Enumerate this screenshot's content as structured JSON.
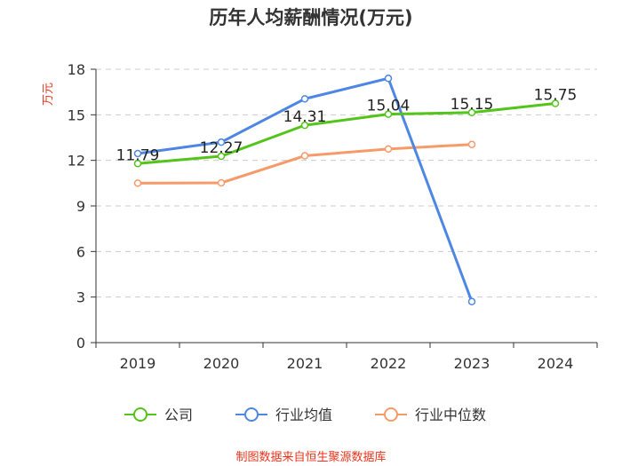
{
  "title": "历年人均薪酬情况(万元)",
  "source": "制图数据来自恒生聚源数据库",
  "chart_data": {
    "type": "line",
    "title": "历年人均薪酬情况(万元)",
    "xlabel": "",
    "ylabel": "万元",
    "categories": [
      "2019",
      "2020",
      "2021",
      "2022",
      "2023",
      "2024"
    ],
    "ylim": [
      0,
      18
    ],
    "yticks": [
      0,
      3,
      6,
      9,
      12,
      15,
      18
    ],
    "grid": true,
    "legend_position": "bottom",
    "series": [
      {
        "name": "公司",
        "color": "#52c41a",
        "values": [
          11.79,
          12.27,
          14.31,
          15.04,
          15.15,
          15.75
        ],
        "labels": [
          "11.79",
          "12.27",
          "14.31",
          "15.04",
          "15.15",
          "15.75"
        ]
      },
      {
        "name": "行业均值",
        "color": "#4e86e4",
        "values": [
          12.45,
          13.2,
          16.05,
          17.4,
          2.7,
          null
        ]
      },
      {
        "name": "行业中位数",
        "color": "#f79a6a",
        "values": [
          10.5,
          10.52,
          12.3,
          12.75,
          13.05,
          null
        ]
      }
    ]
  }
}
